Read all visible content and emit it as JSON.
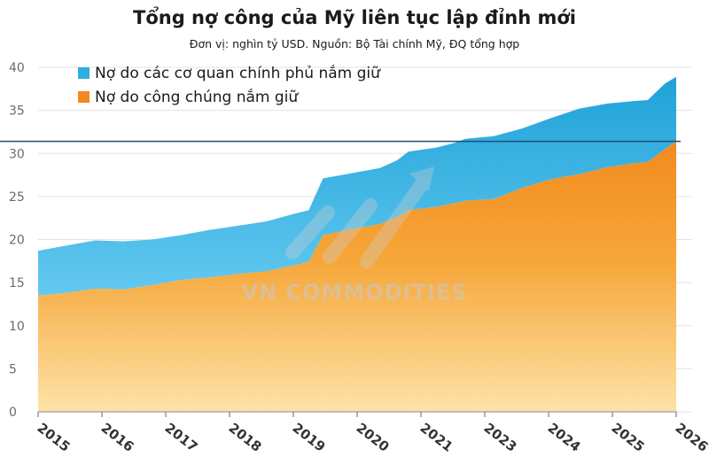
{
  "header": {
    "title": "Tổng nợ công của Mỹ liên tục lập đỉnh mới",
    "subtitle": "Đơn vị: nghìn tỷ USD. Nguồn: Bộ Tài chính Mỹ, ĐQ tổng hợp"
  },
  "watermark": {
    "text": "VN COMMODITIES"
  },
  "colors": {
    "government": "#2eaede",
    "public": "#f28a1e",
    "public_light": "#fde3a8",
    "reference_line": "#1f4e79",
    "grid": "#e3e3e3"
  },
  "chart_data": {
    "type": "area",
    "stacked": true,
    "title": "Tổng nợ công của Mỹ liên tục lập đỉnh mới",
    "subtitle": "Đơn vị: nghìn tỷ USD. Nguồn: Bộ Tài chính Mỹ, ĐQ tổng hợp",
    "xlabel": "",
    "ylabel": "",
    "ylim": [
      0,
      40
    ],
    "yticks": [
      "0",
      "5",
      "10",
      "15",
      "20",
      "25",
      "30",
      "35",
      "40"
    ],
    "xticks": [
      "2015",
      "2016",
      "2017",
      "2018",
      "2019",
      "2020",
      "2021",
      "2023",
      "2024",
      "2025",
      "2026"
    ],
    "grid": true,
    "legend_position": "top-left",
    "reference_line": {
      "y": 31.4
    },
    "x": [
      2015.0,
      2015.5,
      2016.0,
      2016.5,
      2017.0,
      2017.5,
      2018.0,
      2018.5,
      2019.0,
      2019.5,
      2019.75,
      2020.0,
      2020.5,
      2021.0,
      2021.3,
      2021.5,
      2022.0,
      2022.3,
      2022.5,
      2023.0,
      2023.5,
      2024.0,
      2024.5,
      2025.0,
      2025.5,
      2025.7,
      2026.0,
      2026.2
    ],
    "series": [
      {
        "name": "Nợ do công chúng nắm giữ",
        "values": [
          13.5,
          13.8,
          14.3,
          14.2,
          14.7,
          15.3,
          15.6,
          16.0,
          16.3,
          17.0,
          17.4,
          20.5,
          21.2,
          21.8,
          22.6,
          23.4,
          23.8,
          24.2,
          24.5,
          24.7,
          26.0,
          27.0,
          27.6,
          28.4,
          28.9,
          29.0,
          30.5,
          31.4
        ]
      },
      {
        "name": "Nợ do các cơ quan chính phủ nắm giữ",
        "values": [
          5.2,
          5.5,
          5.6,
          5.6,
          5.3,
          5.2,
          5.5,
          5.6,
          5.8,
          6.0,
          6.0,
          6.6,
          6.5,
          6.5,
          6.6,
          6.8,
          6.9,
          7.0,
          7.2,
          7.3,
          6.9,
          7.1,
          7.6,
          7.4,
          7.2,
          7.2,
          7.6,
          7.5
        ]
      }
    ]
  }
}
